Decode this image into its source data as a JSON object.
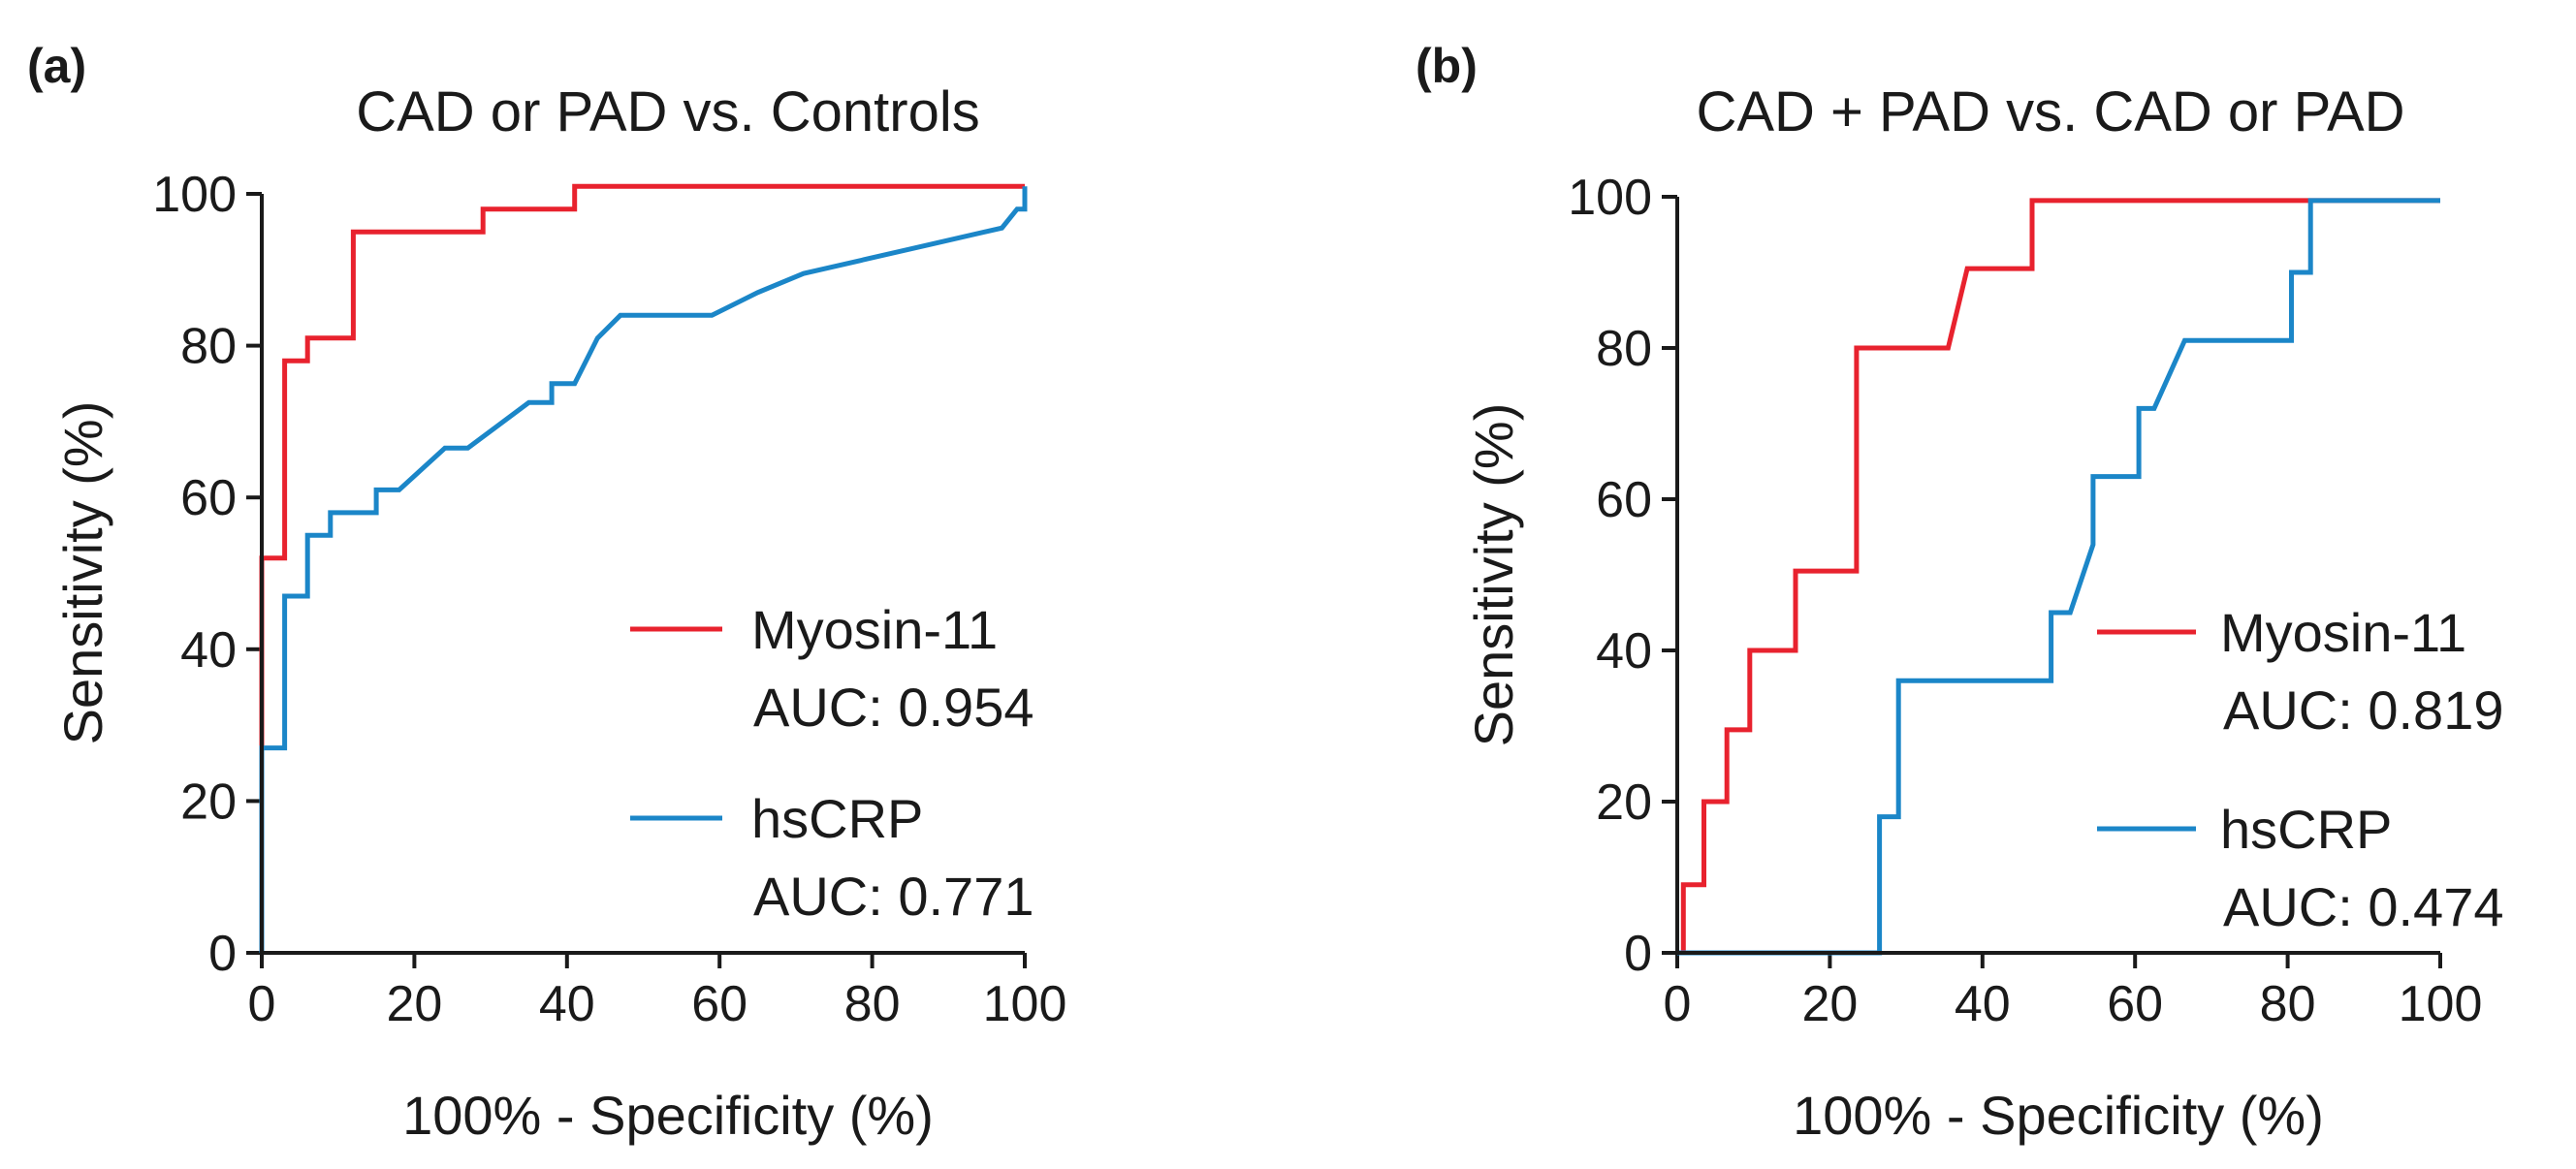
{
  "chart_data": [
    {
      "type": "line",
      "panel_label": "(a)",
      "title": "CAD or PAD vs. Controls",
      "xlabel": "100% - Specificity (%)",
      "ylabel": "Sensitivity (%)",
      "xlim": [
        0,
        100
      ],
      "ylim": [
        0,
        100
      ],
      "xticks": [
        0,
        20,
        40,
        60,
        80,
        100
      ],
      "yticks": [
        0,
        20,
        40,
        60,
        80,
        100
      ],
      "legend_position": "bottom-right",
      "series": [
        {
          "name": "Myosin-11",
          "auc_label": "AUC: 0.954",
          "color": "#e8222e",
          "x": [
            0,
            0,
            0,
            3,
            3,
            6,
            6,
            12,
            12,
            29,
            29,
            41,
            41,
            100
          ],
          "y": [
            0,
            26,
            52,
            52,
            78,
            78,
            81,
            81,
            95,
            95,
            98,
            98,
            101,
            101
          ]
        },
        {
          "name": "hsCRP",
          "auc_label": "AUC: 0.771",
          "color": "#1b86c8",
          "x": [
            0,
            0,
            3,
            3,
            6,
            6,
            9,
            9,
            15,
            15,
            18,
            24,
            27,
            35,
            38,
            38,
            41,
            44,
            47,
            59,
            65,
            71,
            97,
            99,
            100,
            100
          ],
          "y": [
            0,
            27,
            27,
            47,
            47,
            55,
            55,
            58,
            58,
            61,
            61,
            66.5,
            66.5,
            72.5,
            72.5,
            75,
            75,
            81,
            84,
            84,
            87,
            89.5,
            95.5,
            98,
            98,
            101
          ]
        }
      ]
    },
    {
      "type": "line",
      "panel_label": "(b)",
      "title": "CAD + PAD vs. CAD or PAD",
      "xlabel": "100% - Specificity (%)",
      "ylabel": "Sensitivity (%)",
      "xlim": [
        0,
        100
      ],
      "ylim": [
        0,
        100
      ],
      "xticks": [
        0,
        20,
        40,
        60,
        80,
        100
      ],
      "yticks": [
        0,
        20,
        40,
        60,
        80,
        100
      ],
      "legend_position": "bottom-right",
      "series": [
        {
          "name": "Myosin-11",
          "auc_label": "AUC: 0.819",
          "color": "#e8222e",
          "x": [
            0,
            0.8,
            0.8,
            3.5,
            3.5,
            6.5,
            6.5,
            9.5,
            9.5,
            15.5,
            15.5,
            23.5,
            23.5,
            35.5,
            38,
            38,
            46.5,
            46.5,
            100
          ],
          "y": [
            0,
            0,
            9,
            9,
            20,
            20,
            29.5,
            29.5,
            40,
            40,
            50.5,
            50.5,
            80,
            80,
            90.5,
            90.5,
            90.5,
            99.5,
            99.5
          ]
        },
        {
          "name": "hsCRP",
          "auc_label": "AUC: 0.474",
          "color": "#1b86c8",
          "x": [
            0,
            26.5,
            26.5,
            29,
            29,
            49,
            49,
            51.5,
            54.5,
            54.5,
            58,
            58,
            60.5,
            60.5,
            62.5,
            66.5,
            80.5,
            80.5,
            83,
            83,
            100
          ],
          "y": [
            0,
            0,
            18,
            18,
            36,
            36,
            45,
            45,
            54,
            63,
            63,
            63,
            63,
            72,
            72,
            81,
            81,
            90,
            90,
            99.5,
            99.5
          ]
        }
      ]
    }
  ]
}
